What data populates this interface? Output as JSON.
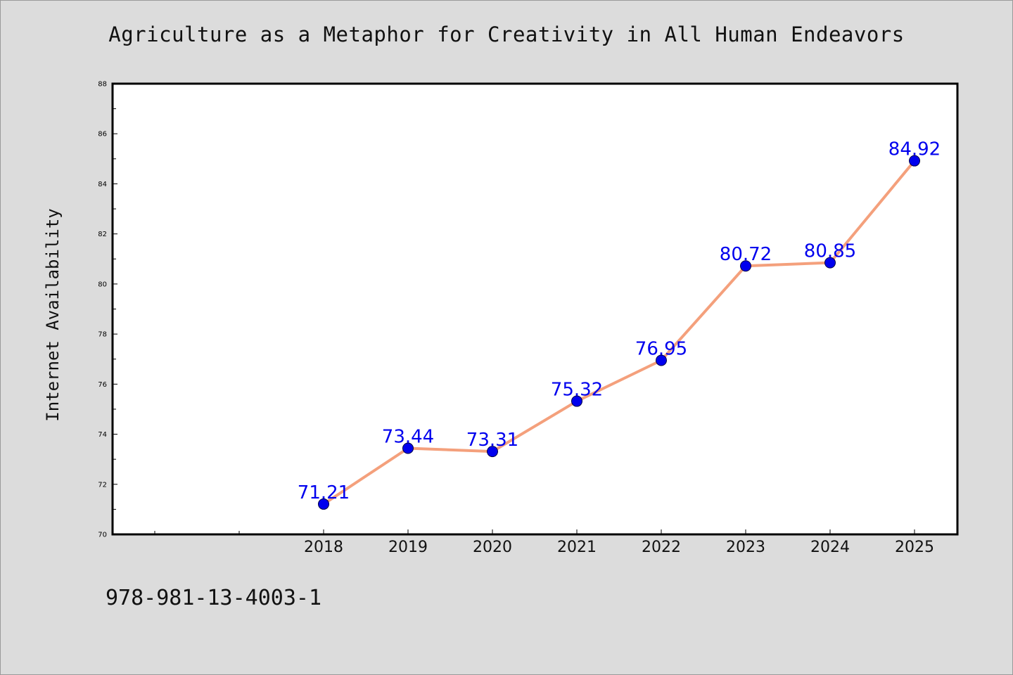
{
  "chart_data": {
    "type": "line",
    "title": "Agriculture as a Metaphor for Creativity in All Human Endeavors",
    "xlabel": "",
    "ylabel": "Internet Availability",
    "categories": [
      "2018",
      "2019",
      "2020",
      "2021",
      "2022",
      "2023",
      "2024",
      "2025"
    ],
    "values": [
      71.21,
      73.44,
      73.31,
      75.32,
      76.95,
      80.72,
      80.85,
      84.92
    ],
    "data_labels": [
      "71.21",
      "73.44",
      "73.31",
      "75.32",
      "76.95",
      "80.72",
      "80.85",
      "84.92"
    ],
    "ylim": [
      70,
      88
    ],
    "yticks": [
      "70",
      "72",
      "74",
      "76",
      "78",
      "80",
      "82",
      "84",
      "86",
      "88"
    ],
    "grid": false,
    "colors": {
      "line": "#f4a07c",
      "marker": "#0000ee",
      "label": "#0000ee",
      "plot_bg": "#ffffff"
    }
  },
  "footer_code": "978-981-13-4003-1"
}
